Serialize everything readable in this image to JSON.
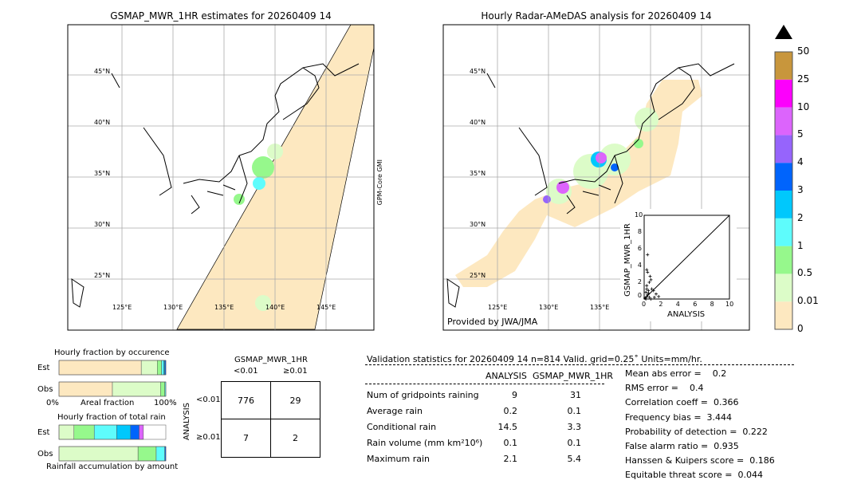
{
  "left_map": {
    "title": "GSMAP_MWR_1HR estimates for 20260409 14",
    "side_label": "GPM-Core GMI"
  },
  "right_map": {
    "title": "Hourly Radar-AMeDAS analysis for 20260409 14",
    "credit": "Provided by JWA/JMA"
  },
  "lat_labels": [
    "45°N",
    "40°N",
    "35°N",
    "30°N",
    "25°N"
  ],
  "lon_labels": [
    "125°E",
    "130°E",
    "135°E",
    "140°E",
    "145°E"
  ],
  "colorbar": {
    "ticks": [
      "0",
      "0.01",
      "0.5",
      "1",
      "2",
      "3",
      "4",
      "5",
      "10",
      "25",
      "50"
    ],
    "colors": [
      "#fde8c0",
      "#dcfcc8",
      "#96f88c",
      "#5efcfc",
      "#00c8fc",
      "#0064fc",
      "#9664fc",
      "#dc64fc",
      "#fc00fc",
      "#c8963c"
    ],
    "extend": "max"
  },
  "chart_data": [
    {
      "type": "scatter",
      "xlabel": "ANALYSIS",
      "ylabel": "GSMAP_MWR_1HR",
      "xlim": [
        0,
        10
      ],
      "ylim": [
        0,
        10
      ],
      "ticks": [
        "0",
        "2",
        "4",
        "6",
        "8",
        "10"
      ],
      "points": [
        [
          0.4,
          5.3
        ],
        [
          0.3,
          3.5
        ],
        [
          0.4,
          3.2
        ],
        [
          0.7,
          2.7
        ],
        [
          0.8,
          2.3
        ],
        [
          0.6,
          2.0
        ],
        [
          0.3,
          1.6
        ],
        [
          0.9,
          1.2
        ],
        [
          1.1,
          1.0
        ],
        [
          1.4,
          0.6
        ],
        [
          1.7,
          0.3
        ],
        [
          0.5,
          1.0
        ],
        [
          0.2,
          0.8
        ],
        [
          0.4,
          0.5
        ],
        [
          0.3,
          0.3
        ],
        [
          0.6,
          0.2
        ],
        [
          0.1,
          0.1
        ],
        [
          0.8,
          0.0
        ],
        [
          0.2,
          0.0
        ],
        [
          1.2,
          0.2
        ],
        [
          0.5,
          0.7
        ],
        [
          0.3,
          1.2
        ]
      ]
    },
    {
      "type": "bar",
      "title": "Hourly fraction by occurence",
      "xlabel": "Areal fraction",
      "xticks": [
        "0%",
        "100%"
      ],
      "categories": [
        "Est",
        "Obs"
      ],
      "series": [
        {
          "values": [
            [
              0.77,
              "#fde8c0"
            ],
            [
              0.15,
              "#dcfcc8"
            ],
            [
              0.04,
              "#96f88c"
            ],
            [
              0.02,
              "#5efcfc"
            ],
            [
              0.01,
              "#00c8fc"
            ],
            [
              0.01,
              "#0064fc"
            ]
          ]
        },
        {
          "values": [
            [
              0.5,
              "#fde8c0"
            ],
            [
              0.45,
              "#dcfcc8"
            ],
            [
              0.04,
              "#96f88c"
            ],
            [
              0.01,
              "#5efcfc"
            ]
          ]
        }
      ]
    },
    {
      "type": "bar",
      "title": "Hourly fraction of total rain",
      "xlabel": "Rainfall accumulation by amount",
      "categories": [
        "Est",
        "Obs"
      ],
      "series": [
        {
          "values": [
            [
              0.14,
              "#dcfcc8"
            ],
            [
              0.19,
              "#96f88c"
            ],
            [
              0.21,
              "#5efcfc"
            ],
            [
              0.13,
              "#00c8fc"
            ],
            [
              0.08,
              "#0064fc"
            ],
            [
              0.04,
              "#dc64fc"
            ]
          ]
        },
        {
          "values": [
            [
              0.74,
              "#dcfcc8"
            ],
            [
              0.17,
              "#96f88c"
            ],
            [
              0.08,
              "#5efcfc"
            ],
            [
              0.01,
              "#0064fc"
            ]
          ]
        }
      ]
    }
  ],
  "contingency": {
    "title": "GSMAP_MWR_1HR",
    "col_labels": [
      "<0.01",
      "≥0.01"
    ],
    "row_axis": "ANALYSIS",
    "row_labels": [
      "<0.01",
      "≥0.01"
    ],
    "cells": [
      [
        "776",
        "29"
      ],
      [
        "7",
        "2"
      ]
    ]
  },
  "stats": {
    "header": "Validation statistics for 20260409 14  n=814 Valid. grid=0.25˚ Units=mm/hr.",
    "col_headers": [
      "ANALYSIS",
      "GSMAP_MWR_1HR"
    ],
    "rows": [
      [
        "Num of gridpoints raining",
        "9",
        "31"
      ],
      [
        "Average rain",
        "0.2",
        "0.1"
      ],
      [
        "Conditional rain",
        "14.5",
        "3.3"
      ],
      [
        "Rain volume (mm km²10⁶)",
        "0.1",
        "0.1"
      ],
      [
        "Maximum rain",
        "2.1",
        "5.4"
      ]
    ],
    "scores": [
      "Mean abs error =    0.2",
      "RMS error =    0.4",
      "Correlation coeff =  0.366",
      "Frequency bias =  3.444",
      "Probability of detection =  0.222",
      "False alarm ratio =  0.935",
      "Hanssen & Kuipers score =  0.186",
      "Equitable threat score =  0.044"
    ]
  }
}
